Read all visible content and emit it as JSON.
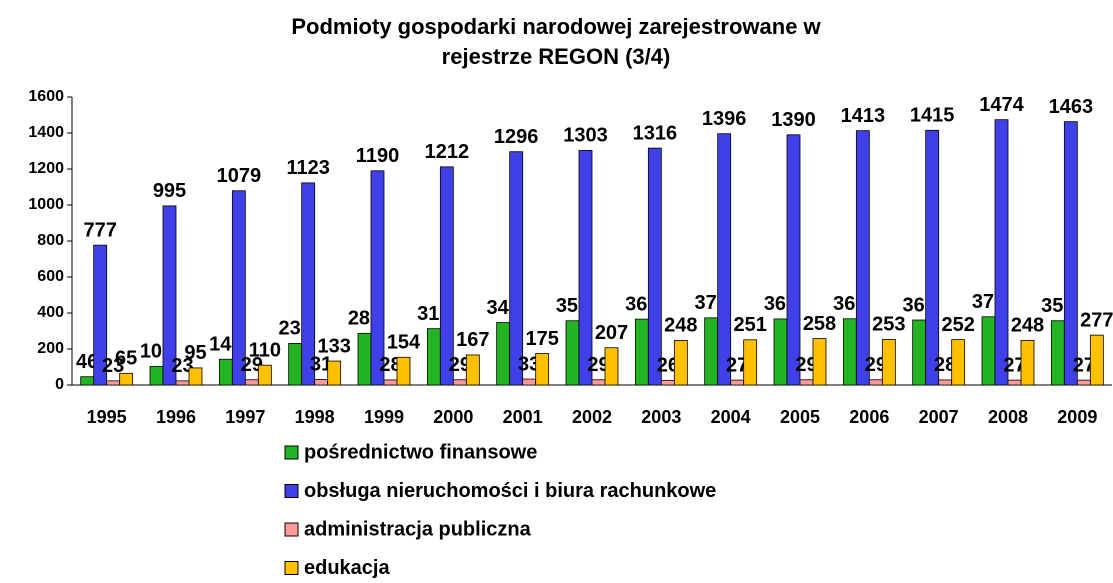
{
  "chart_data": {
    "type": "bar",
    "title": "Podmioty gospodarki narodowej zarejestrowane w rejestrze REGON (3/4)",
    "categories": [
      "1995",
      "1996",
      "1997",
      "1998",
      "1999",
      "2000",
      "2001",
      "2002",
      "2003",
      "2004",
      "2005",
      "2006",
      "2007",
      "2008",
      "2009"
    ],
    "series": [
      {
        "name": "pośrednictwo finansowe",
        "color": "#22b422",
        "values": [
          46,
          103,
          143,
          231,
          287,
          313,
          347,
          357,
          366,
          373,
          367,
          368,
          361,
          379,
          357
        ]
      },
      {
        "name": "obsługa nieruchomości i biura rachunkowe",
        "color": "#4040e8",
        "values": [
          777,
          995,
          1079,
          1123,
          1190,
          1212,
          1296,
          1303,
          1316,
          1396,
          1390,
          1413,
          1415,
          1474,
          1463
        ]
      },
      {
        "name": "administracja publiczna",
        "color": "#ff9a9a",
        "values": [
          23,
          23,
          29,
          31,
          28,
          29,
          33,
          29,
          26,
          27,
          29,
          29,
          28,
          27,
          27
        ]
      },
      {
        "name": "edukacja",
        "color": "#ffc000",
        "values": [
          65,
          95,
          110,
          133,
          154,
          167,
          175,
          207,
          248,
          251,
          258,
          253,
          252,
          248,
          277
        ]
      }
    ],
    "ylim": [
      0,
      1600
    ],
    "yticks": [
      0,
      200,
      400,
      600,
      800,
      1000,
      1200,
      1400,
      1600
    ],
    "grid": false,
    "legend": "bottom"
  }
}
